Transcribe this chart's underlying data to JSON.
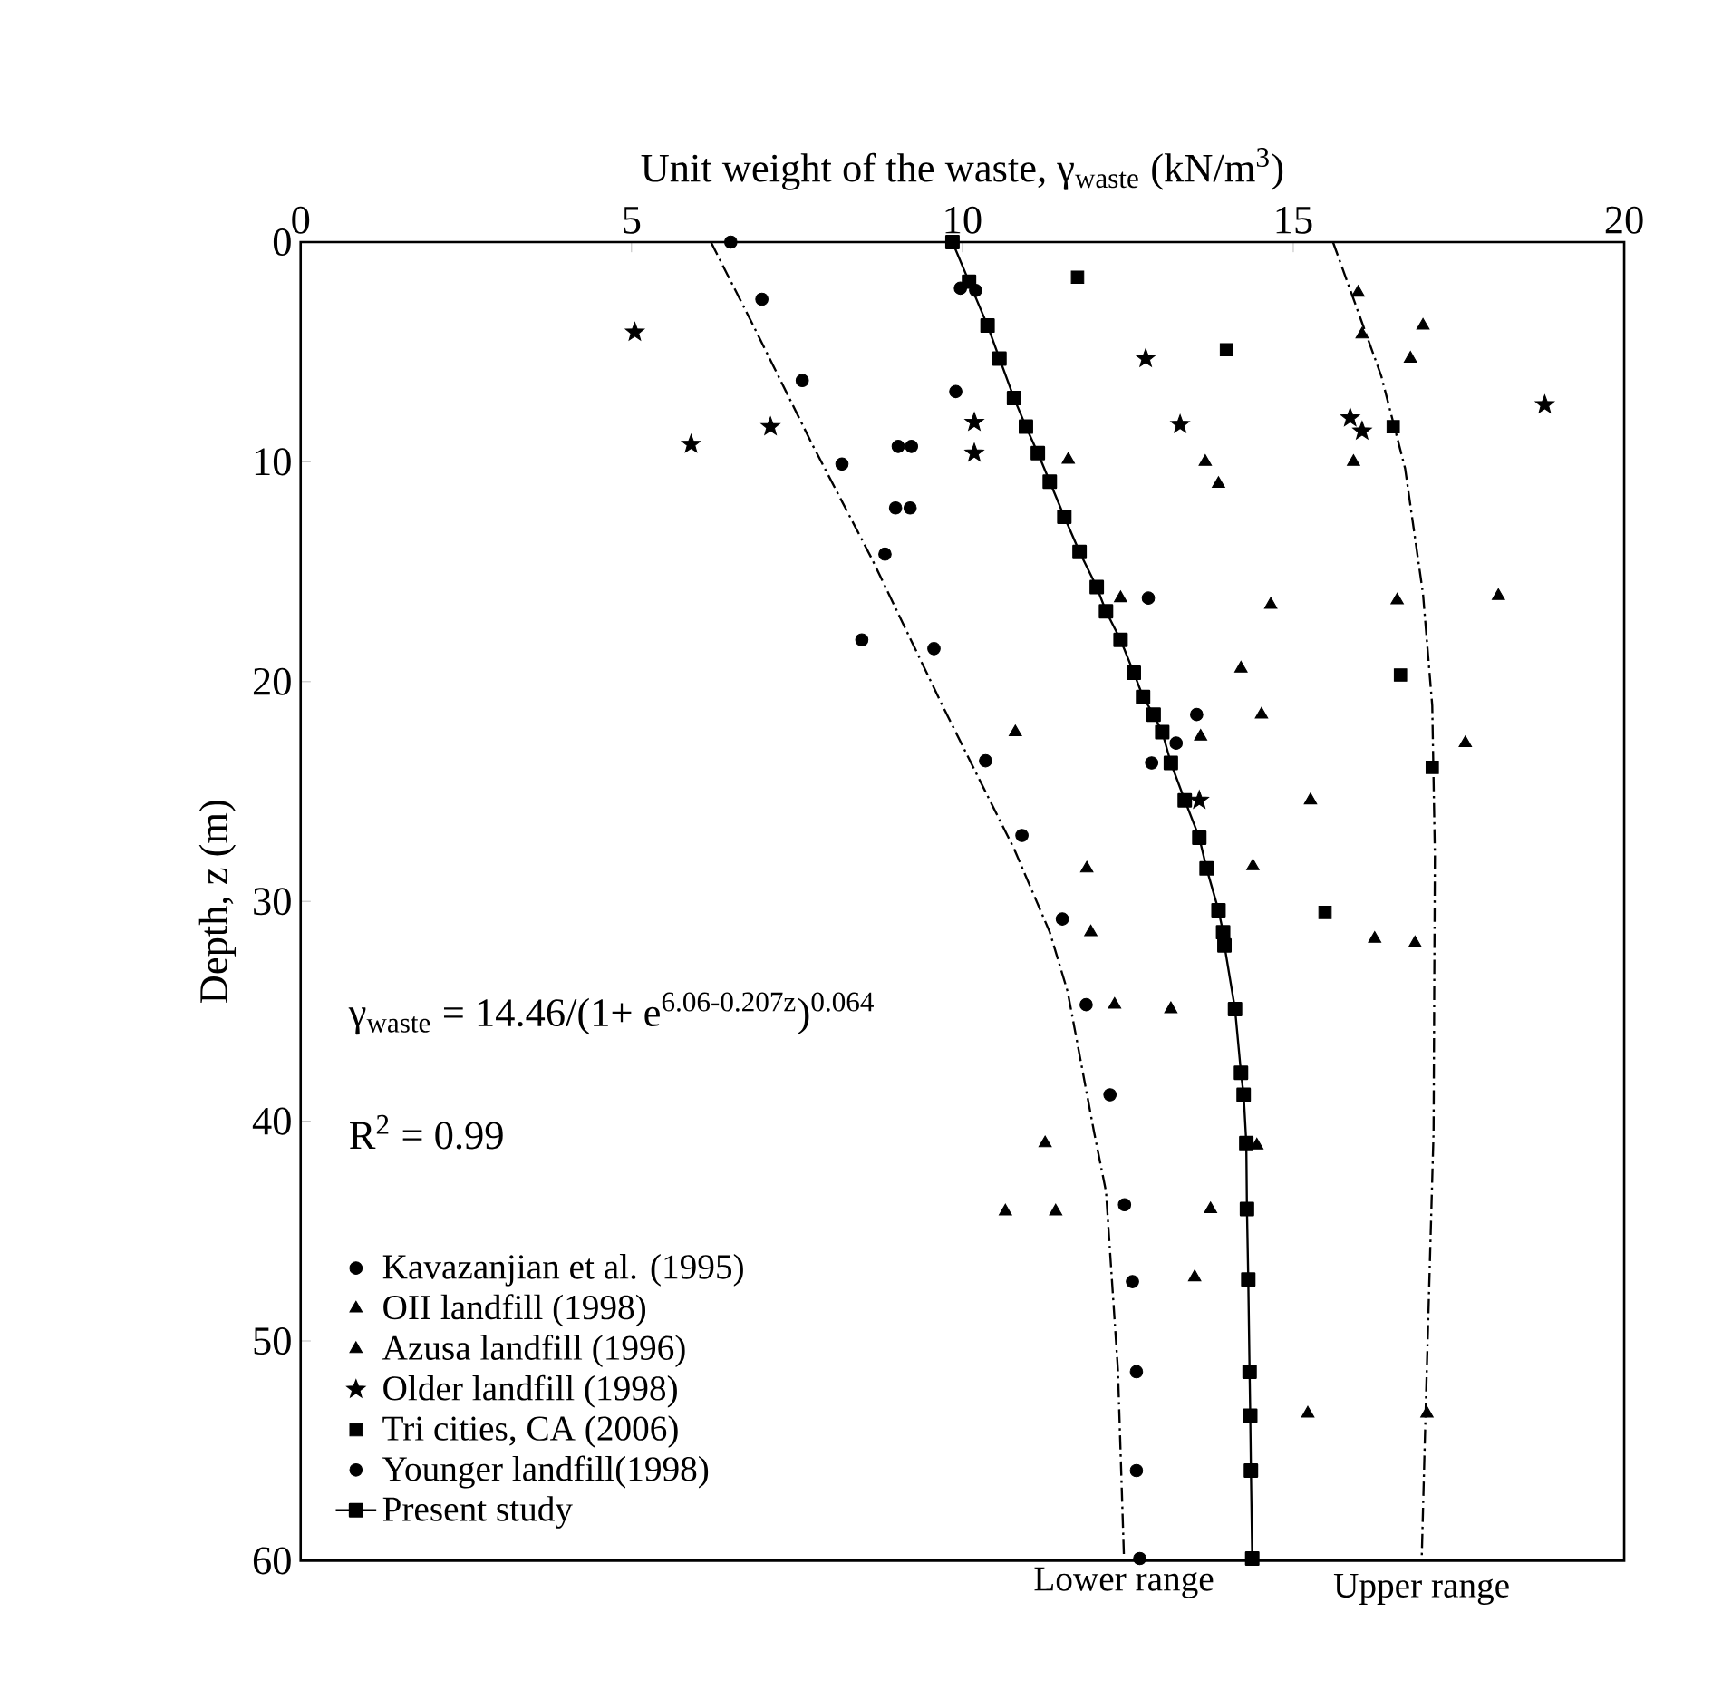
{
  "chart_data": {
    "type": "scatter",
    "xlabel": "Unit weight of the waste, γ$_{waste}$ (kN/m$^{3}$)",
    "ylabel": "Depth, z (m)",
    "annotations": [
      "γ$_{waste}$ = 14.46/(1+ e$^{6.06-0.207z}$)$^{0.064}$",
      "R$^{2}$ = 0.99"
    ],
    "xlim": [
      0,
      20
    ],
    "xticks": [
      0,
      5,
      10,
      15,
      20
    ],
    "ylim": [
      60,
      0
    ],
    "yticks": [
      0,
      10,
      20,
      30,
      40,
      50,
      60
    ],
    "legend": "bottom left",
    "series": [
      {
        "name": "Kavazanjian et al. (1995)",
        "marker": "circle",
        "color": "#000000",
        "x": [
          6.5,
          6.97,
          7.58,
          8.18,
          8.83,
          9.57,
          10.35,
          10.9,
          11.51,
          11.87,
          12.23,
          12.45,
          12.57,
          12.63,
          12.63,
          12.68
        ],
        "values": [
          0,
          2.6,
          6.3,
          10.1,
          14.2,
          18.5,
          23.6,
          27.0,
          30.8,
          34.7,
          38.8,
          43.8,
          47.3,
          51.4,
          55.9,
          59.9
        ]
      },
      {
        "name": "OII landfill (1998)",
        "marker": "triangle",
        "color": "#000000",
        "x": [
          15.98,
          16.96,
          16.04,
          16.77,
          15.91,
          13.87,
          16.57,
          18.1,
          14.21,
          14.52,
          17.6,
          15.26,
          11.94,
          16.23,
          16.84,
          13.75
        ],
        "values": [
          2.3,
          3.8,
          4.2,
          5.3,
          10.0,
          11.0,
          16.3,
          16.1,
          19.4,
          21.5,
          22.8,
          25.4,
          31.4,
          31.7,
          31.9,
          44.0
        ]
      },
      {
        "name": "Azusa landfill (1996)",
        "marker": "triangle",
        "color": "#000000",
        "x": [
          11.6,
          13.67,
          12.39,
          14.66,
          10.8,
          13.6,
          11.88,
          14.39,
          12.3,
          13.15,
          11.25,
          14.45,
          10.65,
          11.41,
          13.51,
          15.22,
          17.02
        ],
        "values": [
          9.9,
          10.0,
          16.2,
          16.5,
          22.3,
          22.5,
          28.5,
          28.4,
          34.7,
          34.9,
          41.0,
          41.1,
          44.1,
          44.1,
          47.1,
          53.3,
          53.3
        ]
      },
      {
        "name": "Older landfill (1998)",
        "marker": "star",
        "color": "#000000",
        "x": [
          5.05,
          5.9,
          7.1,
          10.18,
          10.18,
          12.77,
          13.29,
          15.86,
          16.04,
          18.8,
          13.58
        ],
        "values": [
          4.1,
          9.2,
          8.4,
          8.2,
          9.6,
          5.3,
          8.3,
          8.0,
          8.6,
          7.4,
          25.4
        ]
      },
      {
        "name": "Tri cities, CA (2006)",
        "marker": "square",
        "color": "#000000",
        "x": [
          11.74,
          13.99,
          16.51,
          16.62,
          17.1,
          15.48
        ],
        "values": [
          1.6,
          4.9,
          8.4,
          19.7,
          23.9,
          30.5
        ]
      },
      {
        "name": "Younger landfill(1998)",
        "marker": "circle",
        "color": "#000000",
        "x": [
          9.97,
          10.2,
          9.9,
          9.03,
          9.23,
          8.99,
          9.21,
          8.48,
          12.81,
          13.54,
          13.23,
          12.86
        ],
        "values": [
          2.1,
          2.2,
          6.8,
          9.3,
          9.3,
          12.1,
          12.1,
          18.1,
          16.2,
          21.5,
          22.8,
          23.7
        ]
      },
      {
        "name": "Present study",
        "type": "line",
        "marker": "square",
        "line_style": "solid",
        "color": "#000000",
        "x": [
          9.85,
          10.1,
          10.38,
          10.56,
          10.78,
          10.96,
          11.14,
          11.32,
          11.54,
          11.77,
          12.03,
          12.17,
          12.39,
          12.59,
          12.73,
          12.89,
          13.02,
          13.15,
          13.36,
          13.58,
          13.69,
          13.87,
          13.94,
          13.96,
          14.12,
          14.21,
          14.25,
          14.29,
          14.3,
          14.32,
          14.34,
          14.35,
          14.36,
          14.38
        ],
        "values": [
          0,
          1.8,
          3.8,
          5.3,
          7.1,
          8.4,
          9.6,
          10.9,
          12.5,
          14.1,
          15.7,
          16.8,
          18.1,
          19.6,
          20.7,
          21.5,
          22.3,
          23.7,
          25.4,
          27.1,
          28.5,
          30.4,
          31.4,
          32.0,
          34.9,
          37.8,
          38.8,
          41.0,
          44.0,
          47.2,
          51.4,
          53.4,
          55.9,
          59.9
        ]
      },
      {
        "name": "Lower range",
        "type": "line",
        "marker": "none",
        "line_style": "dashed",
        "color": "#000000",
        "x": [
          6.2,
          6.84,
          7.73,
          8.63,
          9.7,
          10.33,
          10.78,
          11.32,
          11.59,
          11.99,
          12.17,
          12.35,
          12.44
        ],
        "values": [
          0,
          3.8,
          9.2,
          14.4,
          21.1,
          24.9,
          27.6,
          31.4,
          34.1,
          40.5,
          43.2,
          51.3,
          59.7
        ]
      },
      {
        "name": "Upper range",
        "type": "line",
        "marker": "none",
        "line_style": "dashed",
        "color": "#000000",
        "x": [
          15.6,
          16.33,
          16.69,
          16.96,
          17.1,
          17.14,
          17.12,
          17.0,
          16.94
        ],
        "values": [
          0,
          6.1,
          10.3,
          16.0,
          21.1,
          27.9,
          40.5,
          53.2,
          60
        ]
      }
    ]
  }
}
